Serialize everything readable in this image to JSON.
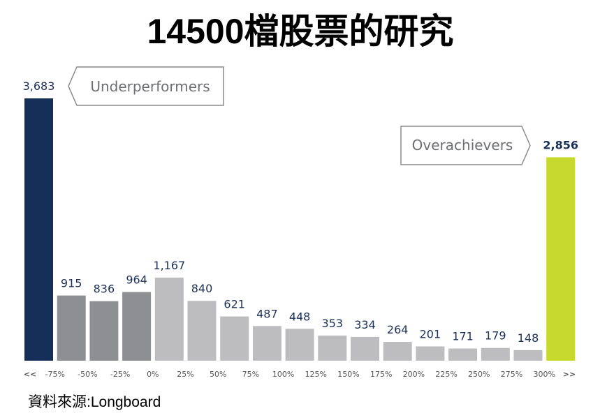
{
  "chart_data": {
    "type": "bar",
    "title": "14500檔股票的研究",
    "bin_labels": [
      "<<",
      "-75%",
      "-50%",
      "-25%",
      "0%",
      "25%",
      "50%",
      "75%",
      "100%",
      "125%",
      "150%",
      "175%",
      "200%",
      "225%",
      "250%",
      "275%",
      "300%",
      ">>"
    ],
    "values": [
      3683,
      915,
      836,
      964,
      1167,
      840,
      621,
      487,
      448,
      353,
      334,
      264,
      201,
      171,
      179,
      148,
      2856
    ],
    "value_labels": [
      "3,683",
      "915",
      "836",
      "964",
      "1,167",
      "840",
      "621",
      "487",
      "448",
      "353",
      "334",
      "264",
      "201",
      "171",
      "179",
      "148",
      "2,856"
    ],
    "colors": [
      "#152f58",
      "#8e8f93",
      "#8e8f93",
      "#8e8f93",
      "#bdbdbf",
      "#bdbdbf",
      "#bdbdbf",
      "#bdbdbf",
      "#bdbdbf",
      "#bdbdbf",
      "#bdbdbf",
      "#bdbdbf",
      "#bdbdbf",
      "#bdbdbf",
      "#bdbdbf",
      "#bdbdbf",
      "#c6d92c"
    ],
    "annotations": [
      "Underperformers",
      "Overachievers"
    ],
    "source": "資料來源:Longboard"
  }
}
